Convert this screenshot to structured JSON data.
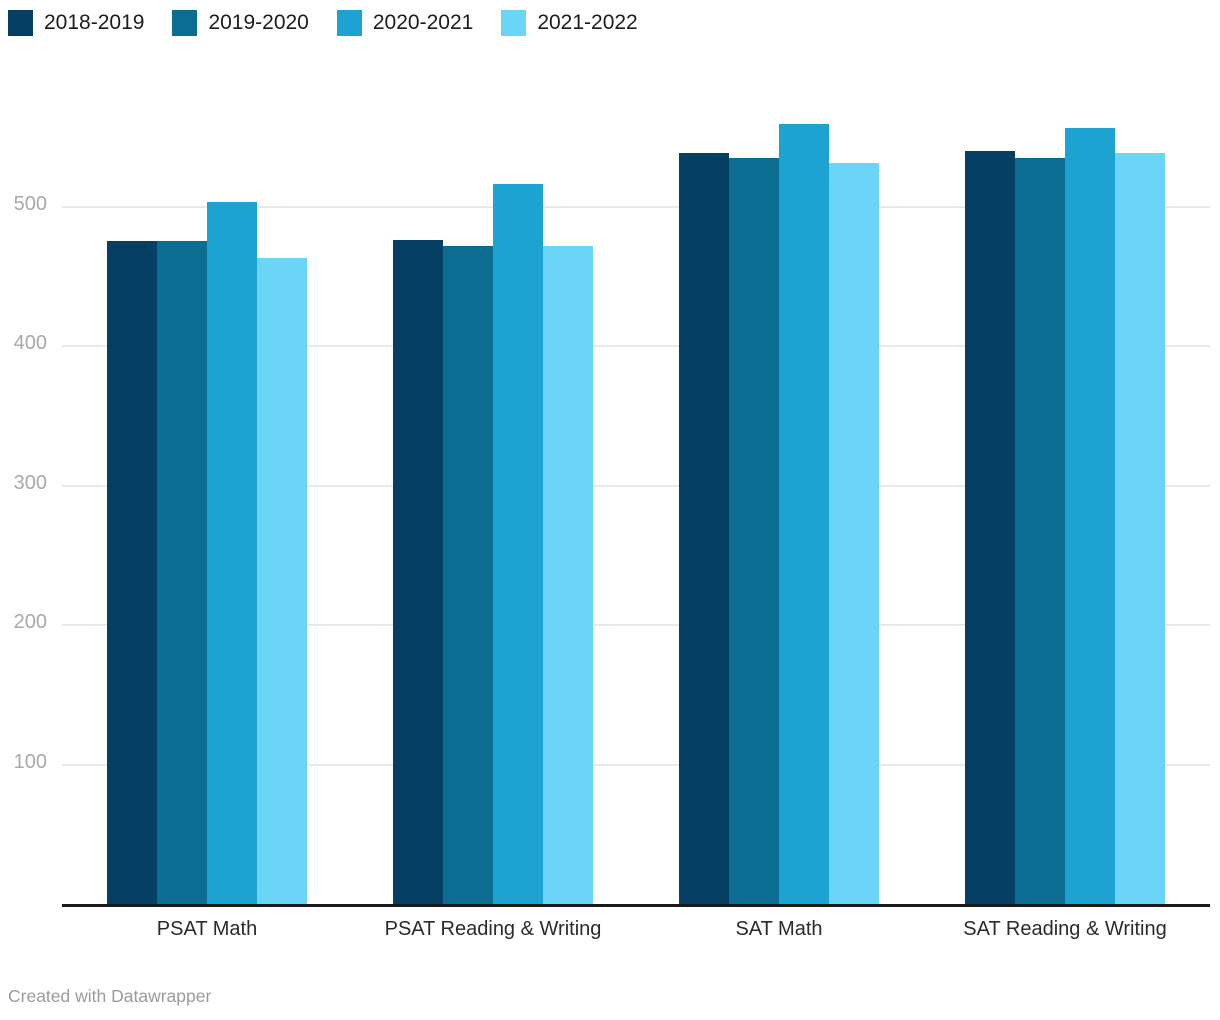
{
  "chart_data": {
    "type": "bar",
    "title": "",
    "categories": [
      "PSAT Math",
      "PSAT Reading & Writing",
      "SAT Math",
      "SAT Reading & Writing"
    ],
    "series": [
      {
        "name": "2018-2019",
        "color": "#053f63",
        "values": [
          475,
          476,
          538,
          540
        ]
      },
      {
        "name": "2019-2020",
        "color": "#0c6d92",
        "values": [
          475,
          472,
          535,
          535
        ]
      },
      {
        "name": "2020-2021",
        "color": "#1ca3d2",
        "values": [
          503,
          516,
          559,
          556
        ]
      },
      {
        "name": "2021-2022",
        "color": "#6bd5f8",
        "values": [
          463,
          472,
          531,
          538
        ]
      }
    ],
    "ylim": [
      0,
      560
    ],
    "yticks": [
      100,
      200,
      300,
      400,
      500
    ],
    "grid": "horizontal",
    "gridline_color": "#e9e9e9",
    "axis_line_color": "#1a1a1a",
    "legend_position": "top-left",
    "xlabel": "",
    "ylabel": ""
  },
  "footer": {
    "credit": "Created with Datawrapper"
  }
}
